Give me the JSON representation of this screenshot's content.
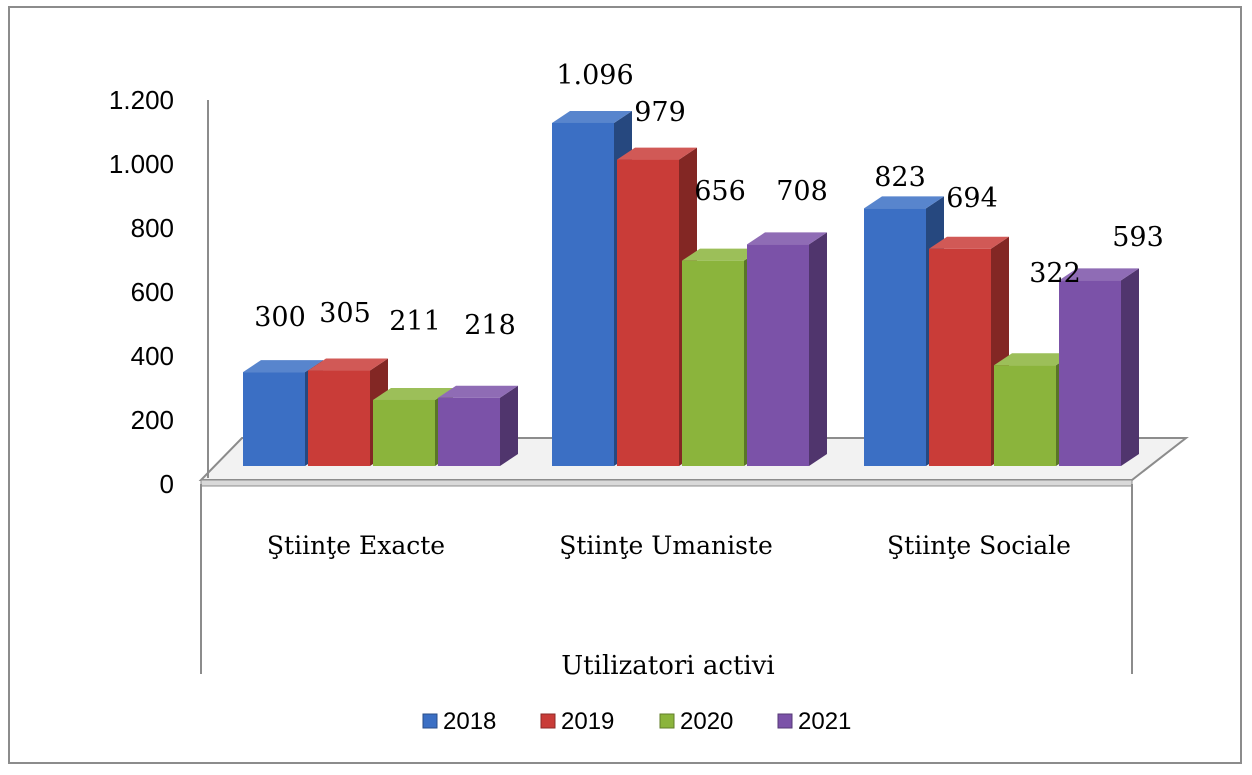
{
  "chart_data": {
    "type": "bar",
    "categories": [
      "Ştiinţe Exacte",
      "Ştiinţe Umaniste",
      "Ştiinţe Sociale"
    ],
    "series": [
      {
        "name": "2018",
        "values": [
          300,
          1096,
          823
        ],
        "color": "#3b6fc4",
        "labels": [
          "300",
          "1.096",
          "823"
        ]
      },
      {
        "name": "2019",
        "values": [
          305,
          979,
          694
        ],
        "color": "#c93c38",
        "labels": [
          "305",
          "979",
          "694"
        ]
      },
      {
        "name": "2020",
        "values": [
          211,
          656,
          322
        ],
        "color": "#8bb43c",
        "labels": [
          "211",
          "656",
          "322"
        ]
      },
      {
        "name": "2021",
        "values": [
          218,
          708,
          593
        ],
        "color": "#7b52a8",
        "labels": [
          "218",
          "708",
          "593"
        ]
      }
    ],
    "title": "",
    "xlabel": "Utilizatori activi",
    "ylabel": "",
    "ylim": [
      0,
      1200
    ],
    "yticks": [
      0,
      200,
      400,
      600,
      800,
      1000,
      1200
    ],
    "ytick_labels": [
      "0",
      "200",
      "400",
      "600",
      "800",
      "1.000",
      "1.200"
    ],
    "grid": false,
    "legend_position": "bottom",
    "style": "3d-clustered-column"
  }
}
